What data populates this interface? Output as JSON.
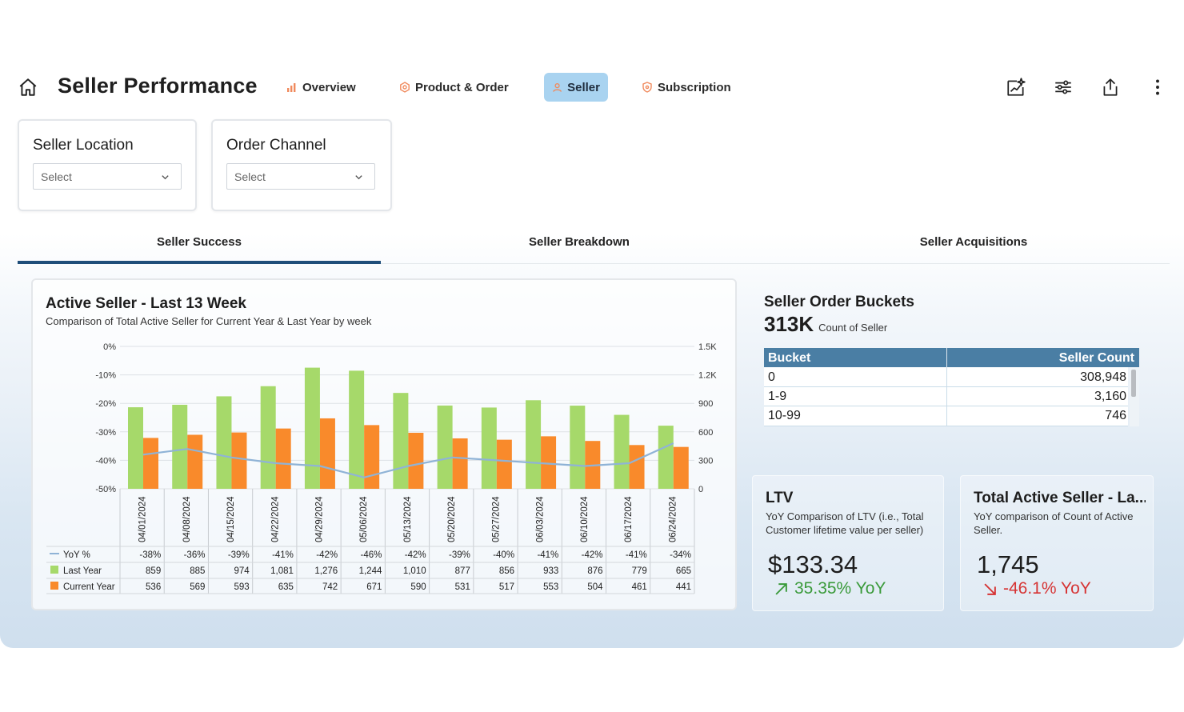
{
  "header": {
    "title": "Seller Performance",
    "tabs": [
      {
        "label": "Overview",
        "icon": "bar-chart-icon"
      },
      {
        "label": "Product & Order",
        "icon": "hexagon-icon"
      },
      {
        "label": "Seller",
        "icon": "user-icon"
      },
      {
        "label": "Subscription",
        "icon": "shield-icon"
      }
    ],
    "active_tab": "Seller",
    "icons": [
      "ai-chart-icon",
      "filter-sliders-icon",
      "share-icon",
      "more-vertical-icon"
    ]
  },
  "filters": {
    "seller_location": {
      "title": "Seller Location",
      "value": "Select"
    },
    "order_channel": {
      "title": "Order Channel",
      "value": "Select"
    }
  },
  "sub_tabs": [
    "Seller Success",
    "Seller Breakdown",
    "Seller Acquisitions"
  ],
  "active_sub_tab": "Seller Success",
  "active_seller": {
    "title": "Active Seller - Last 13 Week",
    "subtitle": "Comparison of Total Active Seller for Current Year & Last Year by week",
    "legend": {
      "yoy": "YoY %",
      "last_year": "Last Year",
      "current_year": "Current Year"
    },
    "yoy_labels": [
      "-38%",
      "-36%",
      "-39%",
      "-41%",
      "-42%",
      "-46%",
      "-42%",
      "-39%",
      "-40%",
      "-41%",
      "-42%",
      "-41%",
      "-34%"
    ],
    "last_year_labels": [
      "859",
      "885",
      "974",
      "1,081",
      "1,276",
      "1,244",
      "1,010",
      "877",
      "856",
      "933",
      "876",
      "779",
      "665"
    ],
    "current_year_labels": [
      "536",
      "569",
      "593",
      "635",
      "742",
      "671",
      "590",
      "531",
      "517",
      "553",
      "504",
      "461",
      "441"
    ]
  },
  "chart_data": {
    "type": "bar",
    "categories": [
      "04/01/2024",
      "04/08/2024",
      "04/15/2024",
      "04/22/2024",
      "04/29/2024",
      "05/06/2024",
      "05/13/2024",
      "05/20/2024",
      "05/27/2024",
      "06/03/2024",
      "06/10/2024",
      "06/17/2024",
      "06/24/2024"
    ],
    "series": [
      {
        "name": "Last Year",
        "type": "bar",
        "axis": "right",
        "color": "#a6d96a",
        "values": [
          859,
          885,
          974,
          1081,
          1276,
          1244,
          1010,
          877,
          856,
          933,
          876,
          779,
          665
        ]
      },
      {
        "name": "Current Year",
        "type": "bar",
        "axis": "right",
        "color": "#f98a2b",
        "values": [
          536,
          569,
          593,
          635,
          742,
          671,
          590,
          531,
          517,
          553,
          504,
          461,
          441
        ]
      },
      {
        "name": "YoY %",
        "type": "line",
        "axis": "left",
        "color": "#8fb3d6",
        "values": [
          -38,
          -36,
          -39,
          -41,
          -42,
          -46,
          -42,
          -39,
          -40,
          -41,
          -42,
          -41,
          -34
        ]
      }
    ],
    "y_left": {
      "range": [
        -50,
        0
      ],
      "ticks": [
        "0%",
        "-10%",
        "-20%",
        "-30%",
        "-40%",
        "-50%"
      ],
      "tick_values": [
        0,
        -10,
        -20,
        -30,
        -40,
        -50
      ]
    },
    "y_right": {
      "range": [
        0,
        1500
      ],
      "ticks": [
        "1.5K",
        "1.2K",
        "900",
        "600",
        "300",
        "0"
      ],
      "tick_values": [
        1500,
        1200,
        900,
        600,
        300,
        0
      ]
    },
    "grid": true,
    "legend": "bottom-left"
  },
  "buckets": {
    "title": "Seller Order Buckets",
    "total": "313K",
    "total_label": "Count of Seller",
    "columns": [
      "Bucket",
      "Seller Count"
    ],
    "rows": [
      [
        "0",
        "308,948"
      ],
      [
        "1-9",
        "3,160"
      ],
      [
        "10-99",
        "746"
      ]
    ]
  },
  "ltv": {
    "title": "LTV",
    "subtitle": "YoY Comparison of LTV (i.e., Total Customer lifetime value per seller)",
    "value": "$133.34",
    "delta": "35.35% YoY",
    "delta_color": "#3a9a3a"
  },
  "total_active": {
    "title": "Total Active Seller - La...",
    "subtitle": "YoY comparison of Count of Active Seller.",
    "value": "1,745",
    "delta": "-46.1% YoY",
    "delta_color": "#d63333"
  }
}
